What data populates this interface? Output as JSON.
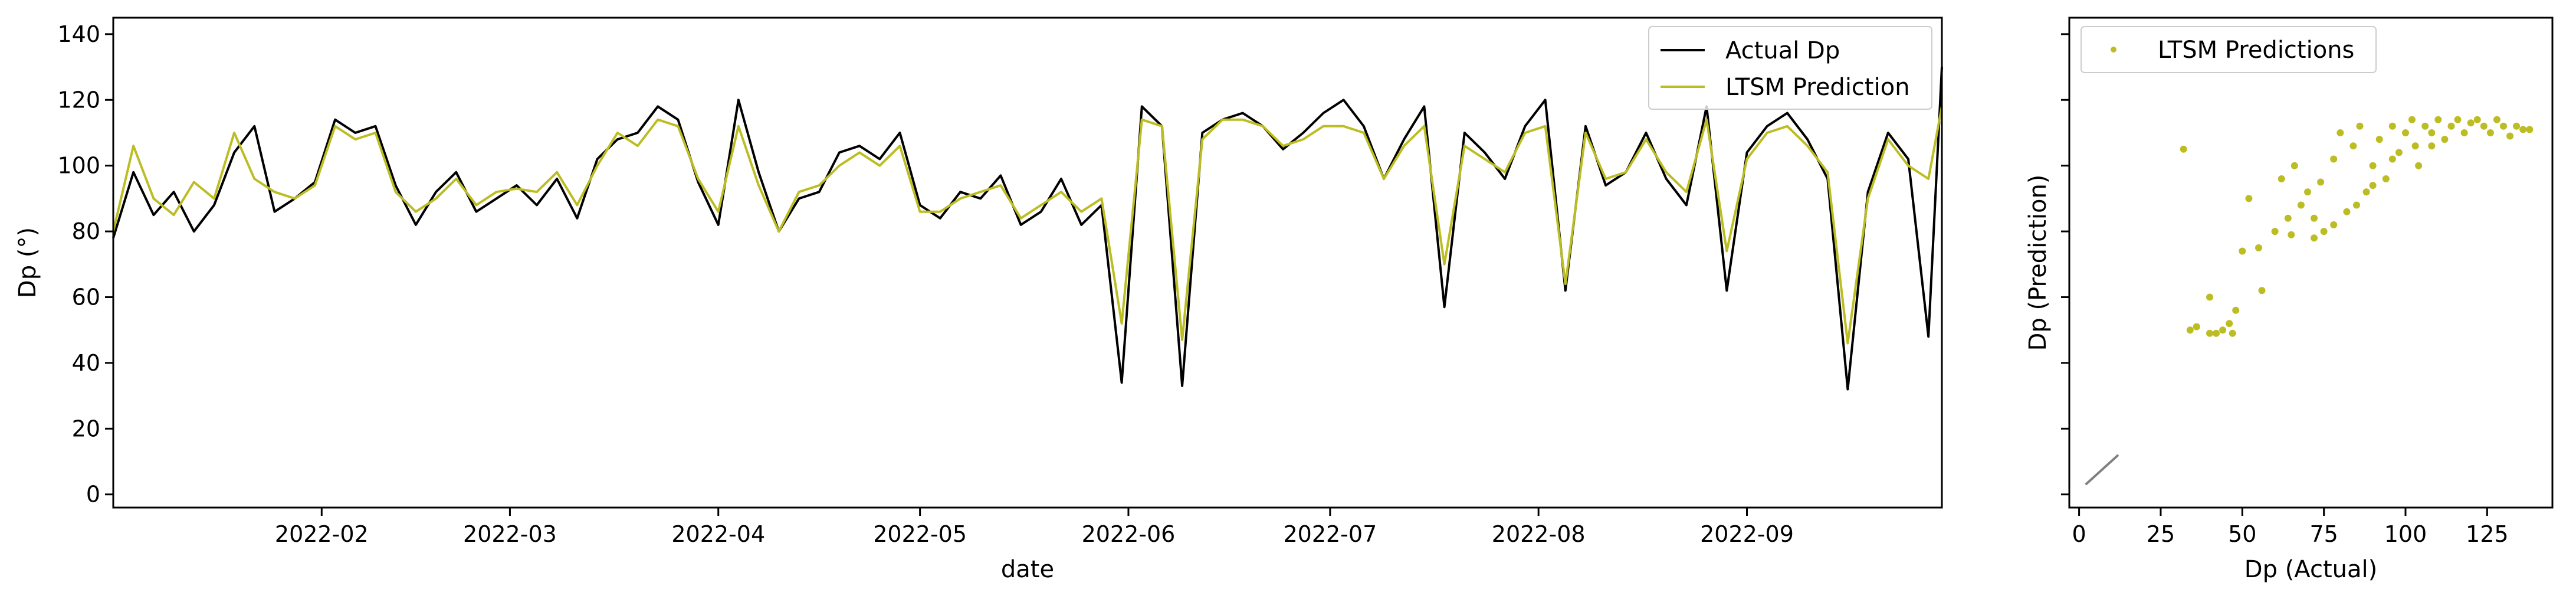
{
  "chart_data": [
    {
      "type": "line",
      "xlabel": "date",
      "ylabel": "Dp (°)",
      "xlim": [
        "2022-01-01",
        "2022-09-30"
      ],
      "ylim": [
        -4,
        145
      ],
      "x_ticks": [
        "2022-02-01",
        "2022-03-01",
        "2022-04-01",
        "2022-05-01",
        "2022-06-01",
        "2022-07-01",
        "2022-08-01",
        "2022-09-01"
      ],
      "x_tick_labels": [
        "2022-02",
        "2022-03",
        "2022-04",
        "2022-05",
        "2022-06",
        "2022-07",
        "2022-08",
        "2022-09"
      ],
      "y_ticks": [
        0,
        20,
        40,
        60,
        80,
        100,
        120,
        140
      ],
      "y_tick_labels": [
        "0",
        "20",
        "40",
        "60",
        "80",
        "100",
        "120",
        "140"
      ],
      "legend_position": "top-right",
      "grid": false,
      "series": [
        {
          "name": "Actual Dp",
          "color": "#000000",
          "x": [
            "2022-01-01",
            "2022-01-04",
            "2022-01-07",
            "2022-01-10",
            "2022-01-13",
            "2022-01-16",
            "2022-01-19",
            "2022-01-22",
            "2022-01-25",
            "2022-01-28",
            "2022-01-31",
            "2022-02-03",
            "2022-02-06",
            "2022-02-09",
            "2022-02-12",
            "2022-02-15",
            "2022-02-18",
            "2022-02-21",
            "2022-02-24",
            "2022-02-27",
            "2022-03-02",
            "2022-03-05",
            "2022-03-08",
            "2022-03-11",
            "2022-03-14",
            "2022-03-17",
            "2022-03-20",
            "2022-03-23",
            "2022-03-26",
            "2022-03-29",
            "2022-04-01",
            "2022-04-04",
            "2022-04-07",
            "2022-04-10",
            "2022-04-13",
            "2022-04-16",
            "2022-04-19",
            "2022-04-22",
            "2022-04-25",
            "2022-04-28",
            "2022-05-01",
            "2022-05-04",
            "2022-05-07",
            "2022-05-10",
            "2022-05-13",
            "2022-05-16",
            "2022-05-19",
            "2022-05-22",
            "2022-05-25",
            "2022-05-28",
            "2022-05-31",
            "2022-06-03",
            "2022-06-06",
            "2022-06-09",
            "2022-06-12",
            "2022-06-15",
            "2022-06-18",
            "2022-06-21",
            "2022-06-24",
            "2022-06-27",
            "2022-06-30",
            "2022-07-03",
            "2022-07-06",
            "2022-07-09",
            "2022-07-12",
            "2022-07-15",
            "2022-07-18",
            "2022-07-21",
            "2022-07-24",
            "2022-07-27",
            "2022-07-30",
            "2022-08-02",
            "2022-08-05",
            "2022-08-08",
            "2022-08-11",
            "2022-08-14",
            "2022-08-17",
            "2022-08-20",
            "2022-08-23",
            "2022-08-26",
            "2022-08-29",
            "2022-09-01",
            "2022-09-04",
            "2022-09-07",
            "2022-09-10",
            "2022-09-13",
            "2022-09-16",
            "2022-09-19",
            "2022-09-22",
            "2022-09-25",
            "2022-09-28",
            "2022-09-30"
          ],
          "y": [
            78,
            98,
            85,
            92,
            80,
            88,
            104,
            112,
            86,
            90,
            95,
            114,
            110,
            112,
            94,
            82,
            92,
            98,
            86,
            90,
            94,
            88,
            96,
            84,
            102,
            108,
            110,
            118,
            114,
            95,
            82,
            120,
            98,
            80,
            90,
            92,
            104,
            106,
            102,
            110,
            88,
            84,
            92,
            90,
            97,
            82,
            86,
            96,
            82,
            88,
            34,
            118,
            112,
            33,
            110,
            114,
            116,
            112,
            105,
            110,
            116,
            120,
            112,
            96,
            108,
            118,
            57,
            110,
            104,
            96,
            112,
            120,
            62,
            112,
            94,
            98,
            110,
            96,
            88,
            118,
            62,
            104,
            112,
            116,
            108,
            96,
            32,
            92,
            110,
            102,
            48,
            130
          ]
        },
        {
          "name": "LTSM Prediction",
          "color": "#bcbd22",
          "x": [
            "2022-01-01",
            "2022-01-04",
            "2022-01-07",
            "2022-01-10",
            "2022-01-13",
            "2022-01-16",
            "2022-01-19",
            "2022-01-22",
            "2022-01-25",
            "2022-01-28",
            "2022-01-31",
            "2022-02-03",
            "2022-02-06",
            "2022-02-09",
            "2022-02-12",
            "2022-02-15",
            "2022-02-18",
            "2022-02-21",
            "2022-02-24",
            "2022-02-27",
            "2022-03-02",
            "2022-03-05",
            "2022-03-08",
            "2022-03-11",
            "2022-03-14",
            "2022-03-17",
            "2022-03-20",
            "2022-03-23",
            "2022-03-26",
            "2022-03-29",
            "2022-04-01",
            "2022-04-04",
            "2022-04-07",
            "2022-04-10",
            "2022-04-13",
            "2022-04-16",
            "2022-04-19",
            "2022-04-22",
            "2022-04-25",
            "2022-04-28",
            "2022-05-01",
            "2022-05-04",
            "2022-05-07",
            "2022-05-10",
            "2022-05-13",
            "2022-05-16",
            "2022-05-19",
            "2022-05-22",
            "2022-05-25",
            "2022-05-28",
            "2022-05-31",
            "2022-06-03",
            "2022-06-06",
            "2022-06-09",
            "2022-06-12",
            "2022-06-15",
            "2022-06-18",
            "2022-06-21",
            "2022-06-24",
            "2022-06-27",
            "2022-06-30",
            "2022-07-03",
            "2022-07-06",
            "2022-07-09",
            "2022-07-12",
            "2022-07-15",
            "2022-07-18",
            "2022-07-21",
            "2022-07-24",
            "2022-07-27",
            "2022-07-30",
            "2022-08-02",
            "2022-08-05",
            "2022-08-08",
            "2022-08-11",
            "2022-08-14",
            "2022-08-17",
            "2022-08-20",
            "2022-08-23",
            "2022-08-26",
            "2022-08-29",
            "2022-09-01",
            "2022-09-04",
            "2022-09-07",
            "2022-09-10",
            "2022-09-13",
            "2022-09-16",
            "2022-09-19",
            "2022-09-22",
            "2022-09-25",
            "2022-09-28",
            "2022-09-30"
          ],
          "y": [
            80,
            106,
            90,
            85,
            95,
            90,
            110,
            96,
            92,
            90,
            94,
            112,
            108,
            110,
            92,
            86,
            90,
            96,
            88,
            92,
            93,
            92,
            98,
            88,
            100,
            110,
            106,
            114,
            112,
            96,
            86,
            112,
            94,
            80,
            92,
            94,
            100,
            104,
            100,
            106,
            86,
            86,
            90,
            92,
            94,
            84,
            88,
            92,
            86,
            90,
            52,
            114,
            112,
            47,
            108,
            114,
            114,
            112,
            106,
            108,
            112,
            112,
            110,
            96,
            106,
            112,
            70,
            106,
            102,
            98,
            110,
            112,
            64,
            110,
            96,
            98,
            108,
            98,
            92,
            114,
            74,
            102,
            110,
            112,
            106,
            98,
            46,
            90,
            108,
            100,
            96,
            118
          ]
        }
      ]
    },
    {
      "type": "scatter",
      "xlabel": "Dp (Actual)",
      "ylabel": "Dp (Prediction)",
      "xlim": [
        -3,
        145
      ],
      "ylim": [
        -4,
        145
      ],
      "x_ticks": [
        0,
        25,
        50,
        75,
        100,
        125
      ],
      "x_tick_labels": [
        "0",
        "25",
        "50",
        "75",
        "100",
        "125"
      ],
      "y_ticks": [
        0,
        20,
        40,
        60,
        80,
        100,
        120,
        140
      ],
      "legend_position": "top-left",
      "grid": false,
      "series": [
        {
          "name": "LTSM Predictions",
          "color": "#bcbd22",
          "points": [
            [
              32,
              105
            ],
            [
              34,
              50
            ],
            [
              36,
              51
            ],
            [
              40,
              60
            ],
            [
              42,
              49
            ],
            [
              44,
              50
            ],
            [
              46,
              52
            ],
            [
              47,
              49
            ],
            [
              48,
              56
            ],
            [
              50,
              74
            ],
            [
              52,
              90
            ],
            [
              56,
              62
            ],
            [
              60,
              80
            ],
            [
              62,
              96
            ],
            [
              64,
              84
            ],
            [
              66,
              100
            ],
            [
              68,
              88
            ],
            [
              70,
              92
            ],
            [
              72,
              84
            ],
            [
              74,
              95
            ],
            [
              75,
              80
            ],
            [
              78,
              102
            ],
            [
              80,
              110
            ],
            [
              82,
              86
            ],
            [
              84,
              106
            ],
            [
              86,
              112
            ],
            [
              88,
              92
            ],
            [
              90,
              100
            ],
            [
              92,
              108
            ],
            [
              94,
              96
            ],
            [
              96,
              112
            ],
            [
              98,
              104
            ],
            [
              100,
              110
            ],
            [
              102,
              114
            ],
            [
              104,
              100
            ],
            [
              106,
              112
            ],
            [
              108,
              106
            ],
            [
              110,
              114
            ],
            [
              112,
              108
            ],
            [
              114,
              112
            ],
            [
              116,
              114
            ],
            [
              118,
              110
            ],
            [
              120,
              113
            ],
            [
              122,
              114
            ],
            [
              124,
              112
            ],
            [
              126,
              110
            ],
            [
              128,
              114
            ],
            [
              130,
              112
            ],
            [
              132,
              109
            ],
            [
              134,
              112
            ],
            [
              136,
              111
            ],
            [
              138,
              111
            ],
            [
              40,
              49
            ],
            [
              55,
              75
            ],
            [
              65,
              79
            ],
            [
              72,
              78
            ],
            [
              78,
              82
            ],
            [
              85,
              88
            ],
            [
              90,
              94
            ],
            [
              96,
              102
            ],
            [
              103,
              106
            ],
            [
              108,
              110
            ]
          ]
        },
        {
          "name": "",
          "color": "#808080",
          "x": [
            2,
            12
          ],
          "y": [
            3,
            12
          ]
        }
      ]
    }
  ]
}
